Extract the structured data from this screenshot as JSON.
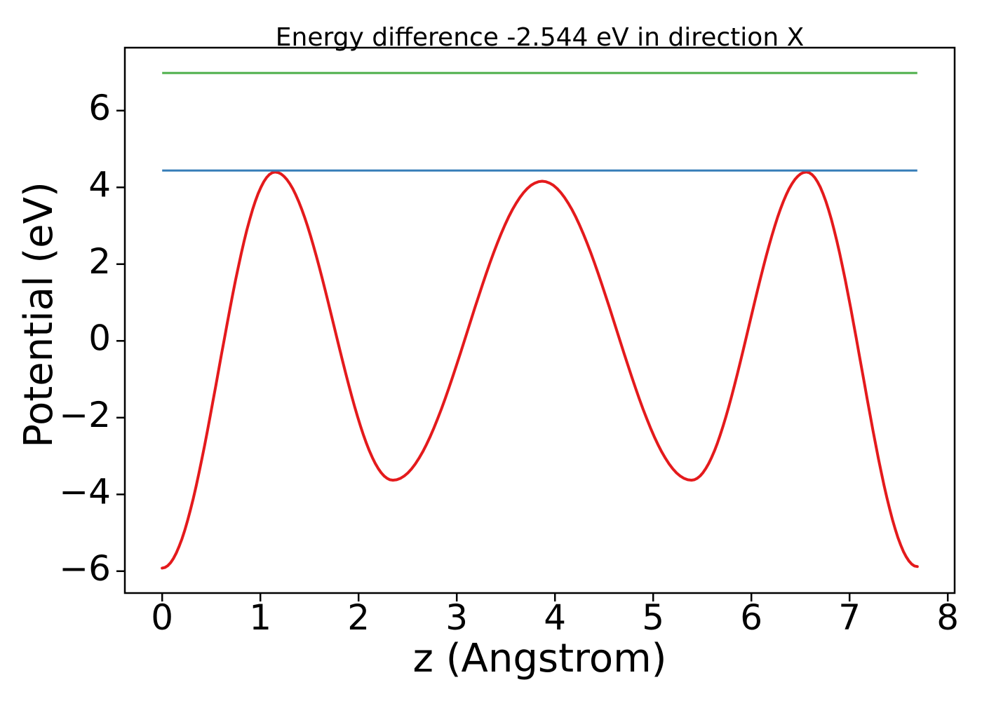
{
  "figure": {
    "background": "#ffffff"
  },
  "chart_data": {
    "type": "line",
    "title": "Energy difference -2.544 eV in direction X",
    "xlabel": "z (Angstrom)",
    "ylabel": "Potential (eV)",
    "xlim": [
      -0.38,
      8.07
    ],
    "ylim": [
      -6.57,
      7.64
    ],
    "xticks": [
      0,
      1,
      2,
      3,
      4,
      5,
      6,
      7,
      8
    ],
    "yticks": [
      -6,
      -4,
      -2,
      0,
      2,
      4,
      6
    ],
    "grid": false,
    "legend": "none",
    "axis_color": "#000000",
    "series": [
      {
        "name": "planar-average-potential",
        "color": "#e41a1c",
        "style": "curve",
        "line_width": 4,
        "interpolation": "half-cosine-between-extrema",
        "extrema": [
          [
            0.0,
            -5.92
          ],
          [
            1.15,
            4.4
          ],
          [
            2.35,
            -3.63
          ],
          [
            3.87,
            4.16
          ],
          [
            5.39,
            -3.63
          ],
          [
            6.56,
            4.4
          ],
          [
            7.69,
            -5.88
          ]
        ]
      },
      {
        "name": "upper-reference-level",
        "color": "#4daf4a",
        "style": "hline",
        "line_width": 3,
        "y": 6.98,
        "x_range": [
          0.0,
          7.69
        ]
      },
      {
        "name": "lower-reference-level",
        "color": "#377eb8",
        "style": "hline",
        "line_width": 3,
        "y": 4.44,
        "x_range": [
          0.0,
          7.69
        ]
      }
    ]
  }
}
